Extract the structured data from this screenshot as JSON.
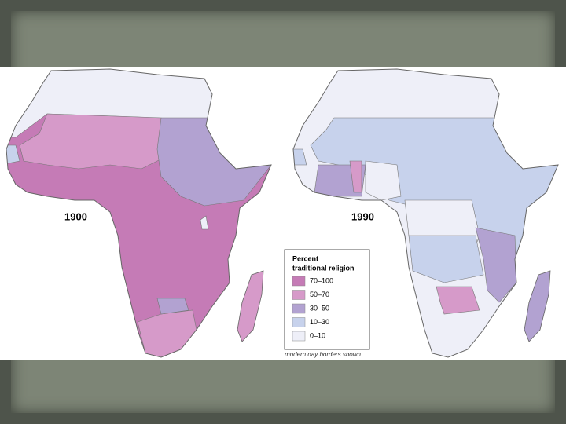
{
  "maps": [
    {
      "label": "1900"
    },
    {
      "label": "1990"
    }
  ],
  "legend": {
    "title": [
      "Percent",
      "traditional religion"
    ],
    "items": [
      {
        "label": "70–100",
        "color": "#c57bb6"
      },
      {
        "label": "50–70",
        "color": "#d69ac9"
      },
      {
        "label": "30–50",
        "color": "#b2a2d1"
      },
      {
        "label": "10–30",
        "color": "#c7d2ec"
      },
      {
        "label": "0–10",
        "color": "#eeeff8"
      }
    ]
  },
  "note": "modern day borders shown"
}
